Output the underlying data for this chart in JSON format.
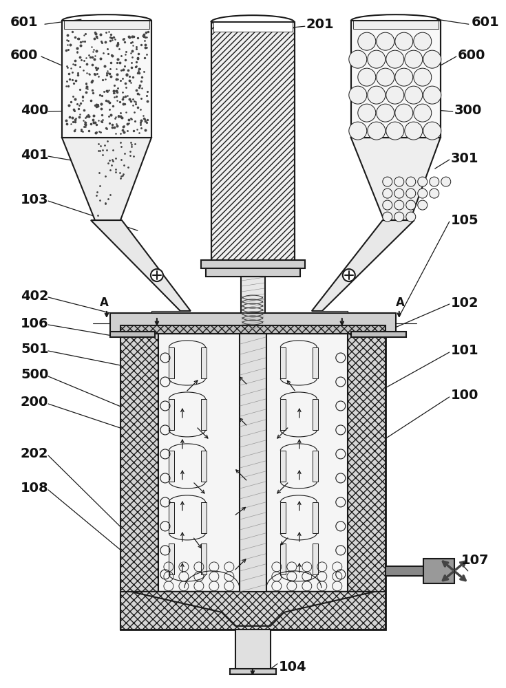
{
  "bg_color": "#ffffff",
  "lc": "#1a1a1a",
  "label_fontsize": 14,
  "label_color": "#111111"
}
